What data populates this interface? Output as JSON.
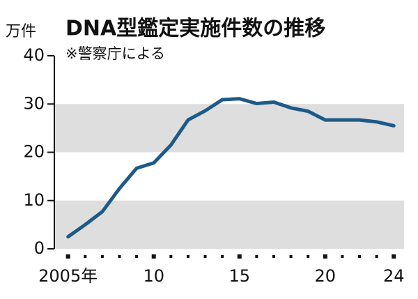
{
  "chart_data": {
    "type": "line",
    "title": "DNA型鑑定実施件数の推移",
    "subtitle": "※警察庁による",
    "y_unit": "万件",
    "x": [
      2005,
      2006,
      2007,
      2008,
      2009,
      2010,
      2011,
      2012,
      2013,
      2014,
      2015,
      2016,
      2017,
      2018,
      2019,
      2020,
      2021,
      2022,
      2023,
      2024
    ],
    "series": [
      {
        "color": "#1d5a87",
        "values": [
          2.5,
          5,
          7.7,
          12.5,
          16.7,
          17.8,
          21.5,
          26.7,
          28.6,
          30.9,
          31.1,
          30.1,
          30.4,
          29.2,
          28.5,
          26.7,
          26.7,
          26.7,
          26.3,
          25.5
        ]
      }
    ],
    "xlim": [
      2004.2,
      2024.6
    ],
    "xticks": [
      {
        "value": 2005,
        "label": "2005年"
      },
      {
        "value": 2010,
        "label": "10"
      },
      {
        "value": 2015,
        "label": "15"
      },
      {
        "value": 2020,
        "label": "20"
      },
      {
        "value": 2024,
        "label": "24"
      }
    ],
    "ylim": [
      0,
      40
    ],
    "yticks": [
      0,
      10,
      20,
      30,
      40
    ],
    "shaded_bands": [
      [
        0,
        10
      ],
      [
        20,
        30
      ]
    ],
    "band_color": "#dedede"
  }
}
